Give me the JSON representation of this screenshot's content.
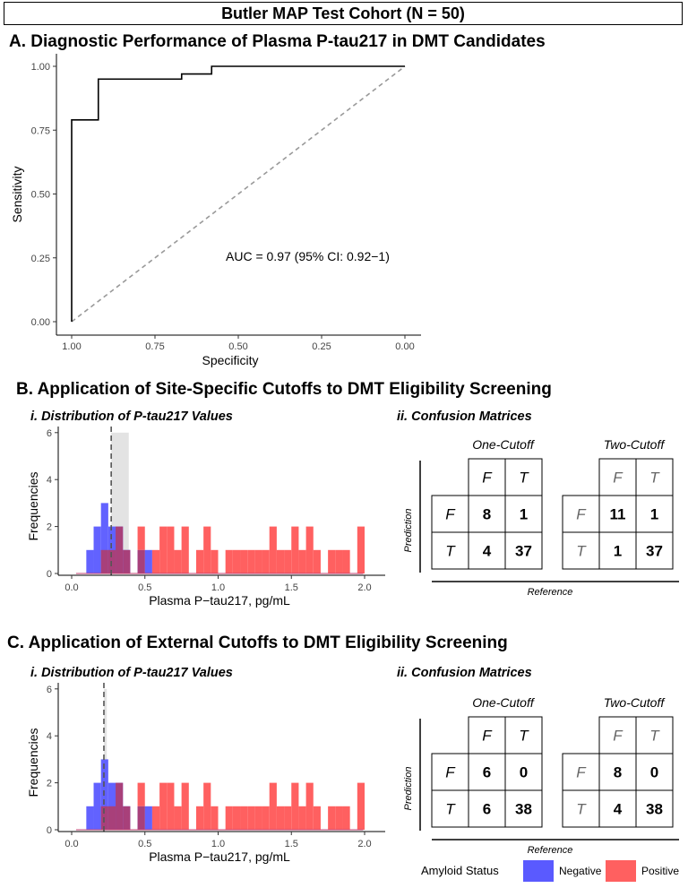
{
  "header": "Butler MAP Test Cohort (N = 50)",
  "panelA": {
    "title": "A. Diagnostic Performance of Plasma P-tau217 in DMT Candidates",
    "auc_text": "AUC = 0.97 (95% CI: 0.92−1)"
  },
  "panelB": {
    "title": "B. Application of Site-Specific Cutoffs to DMT Eligibility Screening",
    "sub_i": "i. Distribution of P-tau217 Values",
    "sub_ii": "ii. Confusion Matrices"
  },
  "panelC": {
    "title": "C. Application of External Cutoffs to DMT Eligibility Screening",
    "sub_i": "i. Distribution of P-tau217 Values",
    "sub_ii": "ii. Confusion Matrices"
  },
  "legend": {
    "title": "Amyloid Status",
    "items": [
      {
        "label": "Negative",
        "color": "#5a5aff"
      },
      {
        "label": "Positive",
        "color": "#ff6060"
      }
    ]
  },
  "colors": {
    "negative": "#5a5aff",
    "positive": "#ff6060",
    "overlap": "#a8407a",
    "shade": "#d9d9d9",
    "diagonal": "#999999"
  },
  "chart_data": [
    {
      "type": "line",
      "panel": "A",
      "title": "Diagnostic Performance of Plasma P-tau217 in DMT Candidates",
      "xlabel": "Specificity",
      "ylabel": "Sensitivity",
      "xlim": [
        1.0,
        0.0
      ],
      "ylim": [
        0.0,
        1.0
      ],
      "x_reversed": true,
      "xticks": [
        "1.00",
        "0.75",
        "0.50",
        "0.25",
        "0.00"
      ],
      "yticks": [
        "0.00",
        "0.25",
        "0.50",
        "0.75",
        "1.00"
      ],
      "roc": {
        "specificity": [
          1.0,
          1.0,
          0.92,
          0.92,
          0.67,
          0.67,
          0.58,
          0.58,
          0.0
        ],
        "sensitivity": [
          0.0,
          0.79,
          0.79,
          0.95,
          0.95,
          0.97,
          0.97,
          1.0,
          1.0
        ]
      },
      "reference_line": {
        "specificity": [
          1.0,
          0.0
        ],
        "sensitivity": [
          0.0,
          1.0
        ]
      },
      "annotation": "AUC = 0.97 (95% CI: 0.92−1)"
    },
    {
      "type": "histogram",
      "panel": "B.i",
      "title": "i. Distribution of P-tau217 Values",
      "xlabel": "Plasma P−tau217, pg/mL",
      "ylabel": "Frequencies",
      "xlim": [
        -0.05,
        2.05
      ],
      "ylim": [
        0,
        6.3
      ],
      "xticks": [
        "0.0",
        "0.5",
        "1.0",
        "1.5",
        "2.0"
      ],
      "yticks": [
        "0",
        "2",
        "4",
        "6"
      ],
      "bin_width": 0.05,
      "negative": {
        "bin_start": [
          0.1,
          0.15,
          0.2,
          0.25,
          0.3,
          0.35,
          0.45,
          0.5
        ],
        "count": [
          1,
          2,
          3,
          2,
          2,
          1,
          1,
          1
        ]
      },
      "positive": {
        "bin_start": [
          0.2,
          0.25,
          0.3,
          0.35,
          0.45,
          0.55,
          0.6,
          0.65,
          0.7,
          0.75,
          0.85,
          0.9,
          0.95,
          1.05,
          1.1,
          1.15,
          1.2,
          1.25,
          1.3,
          1.35,
          1.4,
          1.45,
          1.5,
          1.55,
          1.6,
          1.65,
          1.75,
          1.8,
          1.85,
          1.95
        ],
        "count": [
          1,
          1,
          2,
          1,
          2,
          1,
          2,
          2,
          1,
          2,
          1,
          2,
          1,
          1,
          1,
          1,
          1,
          1,
          1,
          2,
          1,
          1,
          2,
          1,
          2,
          1,
          1,
          1,
          1,
          2
        ]
      },
      "cutoff_line": 0.27,
      "shaded_interval": [
        0.27,
        0.39
      ],
      "shaded_height": 6
    },
    {
      "type": "table",
      "panel": "B.ii",
      "title": "ii. Confusion Matrices",
      "row_axis": "Prediction",
      "col_axis": "Reference",
      "matrices": [
        {
          "name": "One-Cutoff",
          "cols": [
            "F",
            "T"
          ],
          "rows": [
            "F",
            "T"
          ],
          "cells": [
            [
              "8",
              "1"
            ],
            [
              "4",
              "37"
            ]
          ]
        },
        {
          "name": "Two-Cutoff",
          "cols": [
            "F",
            "T"
          ],
          "rows": [
            "F",
            "T"
          ],
          "cells": [
            [
              "11",
              "1"
            ],
            [
              "1",
              "37"
            ]
          ]
        }
      ]
    },
    {
      "type": "histogram",
      "panel": "C.i",
      "title": "i. Distribution of P-tau217 Values",
      "xlabel": "Plasma P−tau217, pg/mL",
      "ylabel": "Frequencies",
      "xlim": [
        -0.05,
        2.05
      ],
      "ylim": [
        0,
        6.3
      ],
      "xticks": [
        "0.0",
        "0.5",
        "1.0",
        "1.5",
        "2.0"
      ],
      "yticks": [
        "0",
        "2",
        "4",
        "6"
      ],
      "bin_width": 0.05,
      "negative": {
        "bin_start": [
          0.1,
          0.15,
          0.2,
          0.25,
          0.3,
          0.35,
          0.45,
          0.5
        ],
        "count": [
          1,
          2,
          3,
          2,
          2,
          1,
          1,
          1
        ]
      },
      "positive": {
        "bin_start": [
          0.2,
          0.25,
          0.3,
          0.35,
          0.45,
          0.55,
          0.6,
          0.65,
          0.7,
          0.75,
          0.85,
          0.9,
          0.95,
          1.05,
          1.1,
          1.15,
          1.2,
          1.25,
          1.3,
          1.35,
          1.4,
          1.45,
          1.5,
          1.55,
          1.6,
          1.65,
          1.75,
          1.8,
          1.85,
          1.95
        ],
        "count": [
          1,
          1,
          2,
          1,
          2,
          1,
          2,
          2,
          1,
          2,
          1,
          2,
          1,
          1,
          1,
          1,
          1,
          1,
          1,
          2,
          1,
          1,
          2,
          1,
          2,
          1,
          1,
          1,
          1,
          2
        ]
      },
      "cutoff_line": 0.22,
      "shaded_interval": [
        0.22,
        0.24
      ],
      "shaded_height": 6
    },
    {
      "type": "table",
      "panel": "C.ii",
      "title": "ii. Confusion Matrices",
      "row_axis": "Prediction",
      "col_axis": "Reference",
      "matrices": [
        {
          "name": "One-Cutoff",
          "cols": [
            "F",
            "T"
          ],
          "rows": [
            "F",
            "T"
          ],
          "cells": [
            [
              "6",
              "0"
            ],
            [
              "6",
              "38"
            ]
          ]
        },
        {
          "name": "Two-Cutoff",
          "cols": [
            "F",
            "T"
          ],
          "rows": [
            "F",
            "T"
          ],
          "cells": [
            [
              "8",
              "0"
            ],
            [
              "4",
              "38"
            ]
          ]
        }
      ]
    }
  ]
}
